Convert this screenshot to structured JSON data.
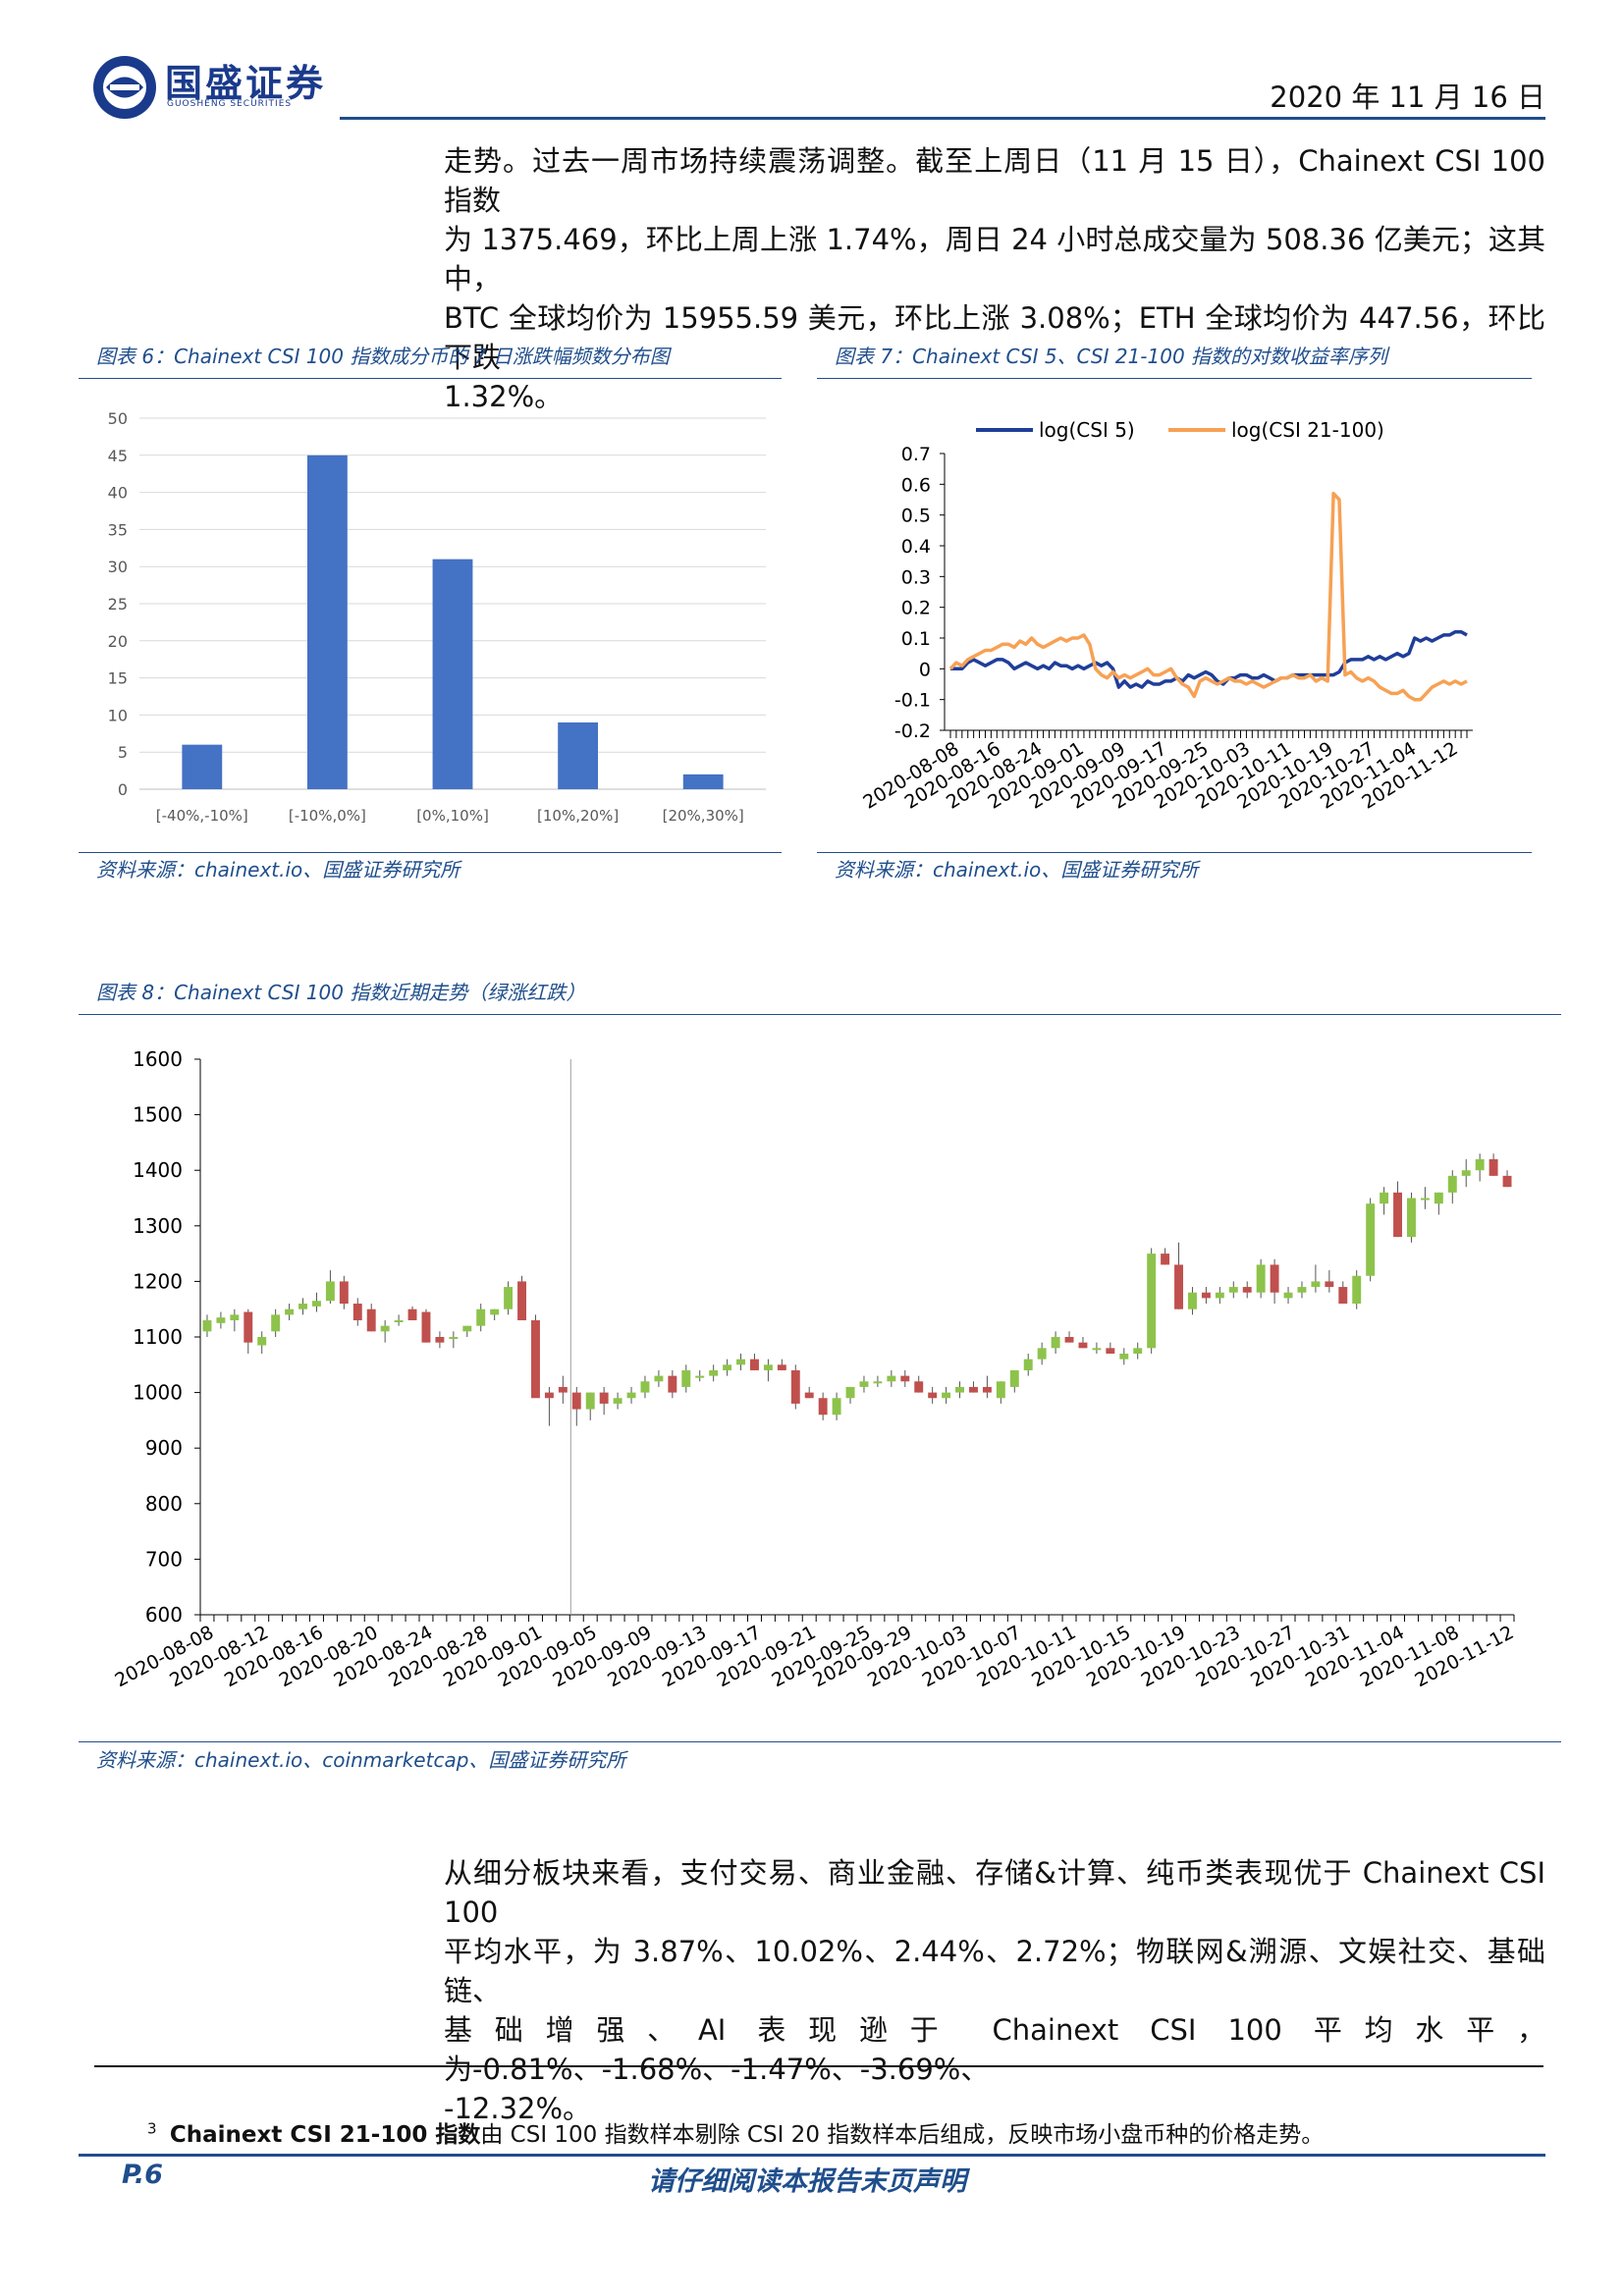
{
  "header": {
    "logo_cn": "国盛证券",
    "logo_en": "GUOSHENG SECURITIES",
    "date": "2020 年 11 月 16 日"
  },
  "intro_paragraph": [
    "走势。过去一周市场持续震荡调整。截至上周日（11 月 15 日），Chainext CSI 100 指数",
    "为 1375.469，环比上周上涨 1.74%，周日 24 小时总成交量为 508.36 亿美元；这其中，",
    "BTC 全球均价为 15955.59 美元，环比上涨 3.08%；ETH 全球均价为 447.56，环比下跌",
    "1.32%。"
  ],
  "figure6": {
    "caption": "图表 6：Chainext CSI 100 指数成分币的 7 日涨跌幅频数分布图",
    "source": "资料来源：chainext.io、国盛证券研究所"
  },
  "figure7": {
    "caption": "图表 7：Chainext CSI 5、CSI 21-100 指数的对数收益率序列",
    "source": "资料来源：chainext.io、国盛证券研究所"
  },
  "figure8": {
    "caption": "图表 8：Chainext CSI 100 指数近期走势（绿涨红跌）",
    "source": "资料来源：chainext.io、coinmarketcap、国盛证券研究所"
  },
  "sector_paragraph": [
    "从细分板块来看，支付交易、商业金融、存储&计算、纯币类表现优于 Chainext CSI 100",
    "平均水平，为 3.87%、10.02%、2.44%、2.72%；物联网&溯源、文娱社交、基础链、",
    "基础增强、AI 表现逊于 Chainext CSI 100 平均水平，为-0.81%、-1.68%、-1.47%、-3.69%、",
    "-12.32%。"
  ],
  "footnote": {
    "mark": "3",
    "bold": "Chainext CSI 21-100 指数",
    "text": "由 CSI 100 指数样本剔除 CSI 20 指数样本后组成，反映市场小盘币种的价格走势。"
  },
  "footer": {
    "page": "P.6",
    "disclaimer": "请仔细阅读本报告末页声明"
  },
  "colors": {
    "brand_blue": "#1f4e8c",
    "bar_blue": "#4472c4",
    "line_dark_blue": "#1f3e99",
    "line_orange": "#f7a154",
    "candle_up": "#8dc34a",
    "candle_down": "#c0504d"
  },
  "chart_data": [
    {
      "type": "bar",
      "categories": [
        "[-40%,-10%]",
        "[-10%,0%]",
        "[0%,10%]",
        "[10%,20%]",
        "[20%,30%]"
      ],
      "values": [
        6,
        45,
        31,
        9,
        2
      ],
      "ylim": [
        0,
        50
      ],
      "yticks": [
        0,
        5,
        10,
        15,
        20,
        25,
        30,
        35,
        40,
        45,
        50
      ],
      "grid": true
    },
    {
      "type": "line",
      "x_ticks": [
        "2020-08-08",
        "2020-08-16",
        "2020-08-24",
        "2020-09-01",
        "2020-09-09",
        "2020-09-17",
        "2020-09-25",
        "2020-10-03",
        "2020-10-11",
        "2020-10-19",
        "2020-10-27",
        "2020-11-04",
        "2020-11-12"
      ],
      "ylim": [
        -0.2,
        0.7
      ],
      "yticks": [
        "-0.2",
        "-0.1",
        "0",
        "0.1",
        "0.2",
        "0.3",
        "0.4",
        "0.5",
        "0.6",
        "0.7"
      ],
      "legend_position": "top",
      "series": [
        {
          "name": "log(CSI 5)",
          "color": "#1f3e99",
          "values": [
            0.0,
            0.0,
            0.0,
            0.02,
            0.03,
            0.02,
            0.01,
            0.02,
            0.03,
            0.03,
            0.02,
            0.0,
            0.01,
            0.02,
            0.01,
            0.0,
            0.01,
            0.0,
            0.02,
            0.01,
            0.01,
            0.0,
            0.01,
            0.0,
            0.01,
            0.02,
            0.01,
            0.02,
            0.0,
            -0.06,
            -0.04,
            -0.06,
            -0.05,
            -0.06,
            -0.04,
            -0.05,
            -0.05,
            -0.04,
            -0.04,
            -0.03,
            -0.04,
            -0.02,
            -0.03,
            -0.02,
            -0.01,
            -0.02,
            -0.04,
            -0.05,
            -0.03,
            -0.03,
            -0.02,
            -0.02,
            -0.03,
            -0.03,
            -0.02,
            -0.03,
            -0.04,
            -0.03,
            -0.03,
            -0.02,
            -0.02,
            -0.02,
            -0.02,
            -0.02,
            -0.02,
            -0.02,
            -0.02,
            -0.01,
            0.02,
            0.03,
            0.03,
            0.03,
            0.04,
            0.03,
            0.04,
            0.03,
            0.04,
            0.05,
            0.04,
            0.05,
            0.1,
            0.09,
            0.1,
            0.09,
            0.1,
            0.11,
            0.11,
            0.12,
            0.12,
            0.11
          ]
        },
        {
          "name": "log(CSI 21-100)",
          "color": "#f7a154",
          "values": [
            0.0,
            0.02,
            0.01,
            0.03,
            0.04,
            0.05,
            0.06,
            0.06,
            0.07,
            0.08,
            0.08,
            0.07,
            0.09,
            0.08,
            0.1,
            0.08,
            0.07,
            0.08,
            0.09,
            0.1,
            0.09,
            0.1,
            0.1,
            0.11,
            0.08,
            0.0,
            -0.02,
            -0.03,
            -0.01,
            -0.03,
            -0.02,
            -0.03,
            -0.02,
            -0.01,
            0.0,
            -0.02,
            -0.02,
            -0.01,
            0.0,
            -0.03,
            -0.05,
            -0.06,
            -0.09,
            -0.04,
            -0.03,
            -0.04,
            -0.05,
            -0.04,
            -0.03,
            -0.04,
            -0.04,
            -0.05,
            -0.04,
            -0.05,
            -0.06,
            -0.05,
            -0.04,
            -0.03,
            -0.03,
            -0.02,
            -0.03,
            -0.03,
            -0.02,
            -0.04,
            -0.03,
            -0.04,
            0.57,
            0.55,
            -0.02,
            -0.01,
            -0.03,
            -0.04,
            -0.03,
            -0.04,
            -0.06,
            -0.07,
            -0.08,
            -0.08,
            -0.07,
            -0.09,
            -0.1,
            -0.1,
            -0.08,
            -0.06,
            -0.05,
            -0.04,
            -0.05,
            -0.04,
            -0.05,
            -0.04
          ]
        }
      ]
    },
    {
      "type": "candlestick",
      "x_ticks": [
        "2020-08-08",
        "2020-08-12",
        "2020-08-16",
        "2020-08-20",
        "2020-08-24",
        "2020-08-28",
        "2020-09-01",
        "2020-09-05",
        "2020-09-09",
        "2020-09-13",
        "2020-09-17",
        "2020-09-21",
        "2020-09-25",
        "2020-09-29",
        "2020-10-03",
        "2020-10-07",
        "2020-10-11",
        "2020-10-15",
        "2020-10-19",
        "2020-10-23",
        "2020-10-27",
        "2020-10-31",
        "2020-11-04",
        "2020-11-08",
        "2020-11-12"
      ],
      "ylim": [
        600,
        1600
      ],
      "yticks": [
        "600",
        "700",
        "800",
        "900",
        "1000",
        "1100",
        "1200",
        "1300",
        "1400",
        "1500",
        "1600"
      ],
      "legend_note": "绿涨红跌",
      "ohlc": [
        [
          1110,
          1140,
          1100,
          1130
        ],
        [
          1125,
          1145,
          1115,
          1135
        ],
        [
          1130,
          1150,
          1110,
          1140
        ],
        [
          1145,
          1150,
          1070,
          1090
        ],
        [
          1085,
          1110,
          1070,
          1100
        ],
        [
          1110,
          1150,
          1100,
          1140
        ],
        [
          1140,
          1160,
          1130,
          1150
        ],
        [
          1150,
          1170,
          1140,
          1160
        ],
        [
          1155,
          1180,
          1145,
          1165
        ],
        [
          1165,
          1220,
          1160,
          1200
        ],
        [
          1200,
          1210,
          1150,
          1160
        ],
        [
          1160,
          1170,
          1120,
          1130
        ],
        [
          1150,
          1160,
          1110,
          1110
        ],
        [
          1110,
          1130,
          1090,
          1120
        ],
        [
          1130,
          1140,
          1120,
          1130
        ],
        [
          1150,
          1155,
          1130,
          1130
        ],
        [
          1145,
          1150,
          1090,
          1090
        ],
        [
          1100,
          1110,
          1080,
          1090
        ],
        [
          1100,
          1110,
          1080,
          1100
        ],
        [
          1110,
          1120,
          1100,
          1120
        ],
        [
          1120,
          1160,
          1110,
          1150
        ],
        [
          1140,
          1150,
          1130,
          1150
        ],
        [
          1150,
          1200,
          1140,
          1190
        ],
        [
          1200,
          1210,
          1130,
          1130
        ],
        [
          1130,
          1140,
          1000,
          990
        ],
        [
          1000,
          1010,
          940,
          990
        ],
        [
          1010,
          1030,
          980,
          1000
        ],
        [
          1000,
          1010,
          940,
          970
        ],
        [
          970,
          1000,
          950,
          1000
        ],
        [
          1000,
          1010,
          960,
          980
        ],
        [
          980,
          1000,
          970,
          990
        ],
        [
          990,
          1010,
          980,
          1000
        ],
        [
          1000,
          1030,
          990,
          1020
        ],
        [
          1020,
          1040,
          1010,
          1030
        ],
        [
          1030,
          1040,
          990,
          1000
        ],
        [
          1010,
          1050,
          1000,
          1040
        ],
        [
          1030,
          1040,
          1020,
          1030
        ],
        [
          1030,
          1050,
          1020,
          1040
        ],
        [
          1040,
          1060,
          1030,
          1050
        ],
        [
          1050,
          1070,
          1040,
          1060
        ],
        [
          1060,
          1070,
          1040,
          1040
        ],
        [
          1040,
          1060,
          1020,
          1050
        ],
        [
          1050,
          1060,
          1040,
          1040
        ],
        [
          1040,
          1050,
          970,
          980
        ],
        [
          1000,
          1010,
          990,
          990
        ],
        [
          990,
          1000,
          950,
          960
        ],
        [
          960,
          1000,
          950,
          990
        ],
        [
          990,
          1010,
          980,
          1010
        ],
        [
          1010,
          1030,
          1000,
          1020
        ],
        [
          1020,
          1030,
          1010,
          1020
        ],
        [
          1020,
          1040,
          1010,
          1030
        ],
        [
          1030,
          1040,
          1010,
          1020
        ],
        [
          1020,
          1030,
          1000,
          1000
        ],
        [
          1000,
          1010,
          980,
          990
        ],
        [
          990,
          1010,
          980,
          1000
        ],
        [
          1000,
          1020,
          990,
          1010
        ],
        [
          1010,
          1020,
          1000,
          1000
        ],
        [
          1010,
          1030,
          990,
          1000
        ],
        [
          990,
          1020,
          980,
          1020
        ],
        [
          1010,
          1040,
          1000,
          1040
        ],
        [
          1040,
          1070,
          1030,
          1060
        ],
        [
          1060,
          1090,
          1050,
          1080
        ],
        [
          1080,
          1110,
          1070,
          1100
        ],
        [
          1100,
          1110,
          1090,
          1090
        ],
        [
          1090,
          1100,
          1080,
          1080
        ],
        [
          1080,
          1090,
          1070,
          1080
        ],
        [
          1080,
          1090,
          1070,
          1070
        ],
        [
          1060,
          1080,
          1050,
          1070
        ],
        [
          1070,
          1090,
          1060,
          1080
        ],
        [
          1080,
          1260,
          1070,
          1250
        ],
        [
          1250,
          1260,
          1230,
          1230
        ],
        [
          1230,
          1270,
          1150,
          1150
        ],
        [
          1150,
          1190,
          1140,
          1180
        ],
        [
          1180,
          1190,
          1160,
          1170
        ],
        [
          1170,
          1190,
          1160,
          1180
        ],
        [
          1180,
          1200,
          1170,
          1190
        ],
        [
          1190,
          1200,
          1170,
          1180
        ],
        [
          1180,
          1240,
          1170,
          1230
        ],
        [
          1230,
          1240,
          1160,
          1180
        ],
        [
          1170,
          1190,
          1160,
          1180
        ],
        [
          1180,
          1200,
          1170,
          1190
        ],
        [
          1190,
          1230,
          1180,
          1200
        ],
        [
          1200,
          1220,
          1180,
          1190
        ],
        [
          1190,
          1200,
          1160,
          1160
        ],
        [
          1160,
          1220,
          1150,
          1210
        ],
        [
          1210,
          1350,
          1200,
          1340
        ],
        [
          1340,
          1370,
          1320,
          1360
        ],
        [
          1360,
          1380,
          1280,
          1280
        ],
        [
          1280,
          1360,
          1270,
          1350
        ],
        [
          1350,
          1370,
          1330,
          1350
        ],
        [
          1340,
          1360,
          1320,
          1360
        ],
        [
          1360,
          1400,
          1340,
          1390
        ],
        [
          1390,
          1420,
          1370,
          1400
        ],
        [
          1400,
          1430,
          1380,
          1420
        ],
        [
          1420,
          1430,
          1390,
          1390
        ],
        [
          1390,
          1400,
          1370,
          1370
        ]
      ]
    }
  ]
}
